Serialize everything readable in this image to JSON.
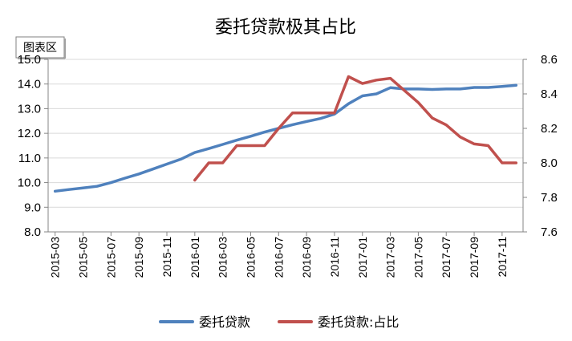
{
  "chart_data": {
    "type": "line",
    "title": "委托贷款极其占比",
    "area_tag": "图表区",
    "categories": [
      "2015-03",
      "2015-04",
      "2015-05",
      "2015-06",
      "2015-07",
      "2015-08",
      "2015-09",
      "2015-10",
      "2015-11",
      "2015-12",
      "2016-01",
      "2016-02",
      "2016-03",
      "2016-04",
      "2016-05",
      "2016-06",
      "2016-07",
      "2016-08",
      "2016-09",
      "2016-10",
      "2016-11",
      "2016-12",
      "2017-01",
      "2017-02",
      "2017-03",
      "2017-04",
      "2017-05",
      "2017-06",
      "2017-07",
      "2017-08",
      "2017-09",
      "2017-10",
      "2017-11",
      "2017-12"
    ],
    "x_tick_labels": [
      "2015-03",
      "2015-05",
      "2015-07",
      "2015-09",
      "2015-11",
      "2016-01",
      "2016-03",
      "2016-05",
      "2016-07",
      "2016-09",
      "2016-11",
      "2017-01",
      "2017-03",
      "2017-05",
      "2017-07",
      "2017-09",
      "2017-11"
    ],
    "y_left": {
      "ylim": [
        8.0,
        15.0
      ],
      "ticks": [
        "8.0",
        "9.0",
        "10.0",
        "11.0",
        "12.0",
        "13.0",
        "14.0",
        "15.0"
      ]
    },
    "y_right": {
      "ylim": [
        7.6,
        8.6
      ],
      "ticks": [
        "7.6",
        "7.8",
        "8.0",
        "8.2",
        "8.4",
        "8.6"
      ]
    },
    "grid": "horizontal",
    "legend_position": "bottom",
    "series": [
      {
        "name": "委托贷款",
        "axis": "left",
        "color": "#4F81BD",
        "values": [
          9.65,
          9.72,
          9.78,
          9.85,
          10.0,
          10.18,
          10.35,
          10.55,
          10.75,
          10.95,
          11.22,
          11.38,
          11.55,
          11.72,
          11.88,
          12.05,
          12.2,
          12.35,
          12.48,
          12.6,
          12.78,
          13.2,
          13.52,
          13.6,
          13.85,
          13.8,
          13.8,
          13.78,
          13.8,
          13.8,
          13.86,
          13.86,
          13.9,
          13.95
        ]
      },
      {
        "name": "委托贷款:占比",
        "axis": "right",
        "color": "#C0504D",
        "values": [
          null,
          null,
          null,
          null,
          null,
          null,
          null,
          null,
          null,
          null,
          7.9,
          8.0,
          8.0,
          8.1,
          8.1,
          8.1,
          8.2,
          8.29,
          8.29,
          8.29,
          8.29,
          8.5,
          8.46,
          8.48,
          8.49,
          8.42,
          8.35,
          8.26,
          8.22,
          8.15,
          8.11,
          8.1,
          8.0,
          8.0
        ]
      }
    ]
  }
}
